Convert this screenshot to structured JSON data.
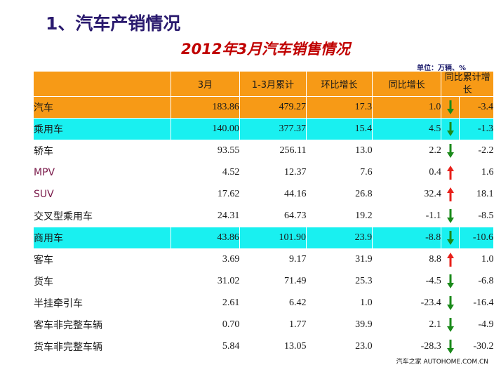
{
  "slide": {
    "title": "1、汽车产销情况",
    "subtitle": "2012年3月汽车销售情况",
    "unit": "单位：万辆、%",
    "watermark": "汽车之家 AUTOHOME.COM.CN"
  },
  "table": {
    "columns": [
      "",
      "3月",
      "1-3月累计",
      "环比增长",
      "同比增长",
      "同比累计增长"
    ],
    "rows": [
      {
        "name": "汽车",
        "march": "183.86",
        "ytd": "479.27",
        "mom": "17.3",
        "yoy": "1.0",
        "trend": "down",
        "yoy_cum": "-3.4"
      },
      {
        "name": "乘用车",
        "march": "140.00",
        "ytd": "377.37",
        "mom": "15.4",
        "yoy": "4.5",
        "trend": "down",
        "yoy_cum": "-1.3"
      },
      {
        "name": "轿车",
        "march": "93.55",
        "ytd": "256.11",
        "mom": "13.0",
        "yoy": "2.2",
        "trend": "down",
        "yoy_cum": "-2.2"
      },
      {
        "name": "MPV",
        "march": "4.52",
        "ytd": "12.37",
        "mom": "7.6",
        "yoy": "0.4",
        "trend": "up",
        "yoy_cum": "1.6"
      },
      {
        "name": "SUV",
        "march": "17.62",
        "ytd": "44.16",
        "mom": "26.8",
        "yoy": "32.4",
        "trend": "up",
        "yoy_cum": "18.1"
      },
      {
        "name": "交叉型乘用车",
        "march": "24.31",
        "ytd": "64.73",
        "mom": "19.2",
        "yoy": "-1.1",
        "trend": "down",
        "yoy_cum": "-8.5"
      },
      {
        "name": "商用车",
        "march": "43.86",
        "ytd": "101.90",
        "mom": "23.9",
        "yoy": "-8.8",
        "trend": "down",
        "yoy_cum": "-10.6"
      },
      {
        "name": "客车",
        "march": "3.69",
        "ytd": "9.17",
        "mom": "31.9",
        "yoy": "8.8",
        "trend": "up",
        "yoy_cum": "1.0"
      },
      {
        "name": "货车",
        "march": "31.02",
        "ytd": "71.49",
        "mom": "25.3",
        "yoy": "-4.5",
        "trend": "down",
        "yoy_cum": "-6.8"
      },
      {
        "name": "半挂牵引车",
        "march": "2.61",
        "ytd": "6.42",
        "mom": "1.0",
        "yoy": "-23.4",
        "trend": "down",
        "yoy_cum": "-16.4"
      },
      {
        "name": "客车非完整车辆",
        "march": "0.70",
        "ytd": "1.77",
        "mom": "39.9",
        "yoy": "2.1",
        "trend": "down",
        "yoy_cum": "-4.9"
      },
      {
        "name": "货车非完整车辆",
        "march": "5.84",
        "ytd": "13.05",
        "mom": "23.0",
        "yoy": "-28.3",
        "trend": "down",
        "yoy_cum": "-30.2"
      }
    ]
  },
  "colors": {
    "header_bg": "#f79a16",
    "total_row_bg": "#f79a16",
    "category_row_bg": "#19f0f0",
    "arrow_up": "#e8201a",
    "arrow_down": "#1a8a1a"
  }
}
